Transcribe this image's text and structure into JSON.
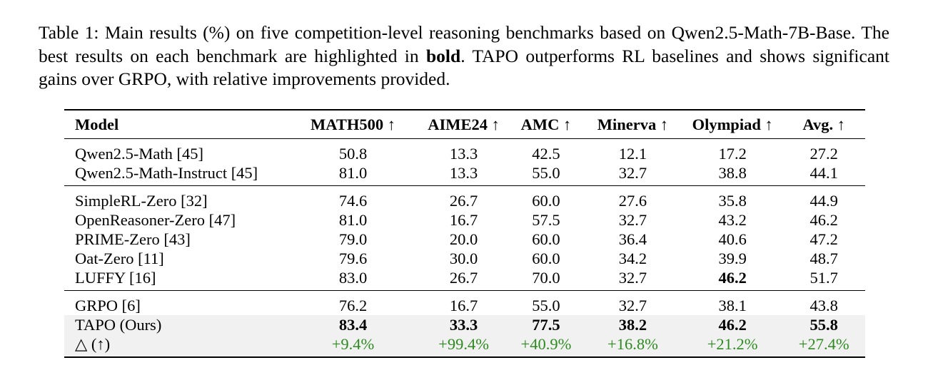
{
  "caption": {
    "prefix": "Table 1: Main results (%) on five competition-level reasoning benchmarks based on Qwen2.5-Math-7B-Base. The best results on each benchmark are highlighted in ",
    "bold_word": "bold",
    "suffix": ". TAPO outperforms RL baselines and shows significant gains over GRPO, with relative improvements provided."
  },
  "table": {
    "headers": [
      "Model",
      "MATH500 ↑",
      "AIME24 ↑",
      "AMC ↑",
      "Minerva ↑",
      "Olympiad ↑",
      "Avg. ↑"
    ],
    "groups": [
      {
        "rows": [
          {
            "model": "Qwen2.5-Math [45]",
            "values": [
              "50.8",
              "13.3",
              "42.5",
              "12.1",
              "17.2",
              "27.2"
            ]
          },
          {
            "model": "Qwen2.5-Math-Instruct [45]",
            "values": [
              "81.0",
              "13.3",
              "55.0",
              "32.7",
              "38.8",
              "44.1"
            ]
          }
        ]
      },
      {
        "rows": [
          {
            "model": "SimpleRL-Zero [32]",
            "values": [
              "74.6",
              "26.7",
              "60.0",
              "27.6",
              "35.8",
              "44.9"
            ]
          },
          {
            "model": "OpenReasoner-Zero [47]",
            "values": [
              "81.0",
              "16.7",
              "57.5",
              "32.7",
              "43.2",
              "46.2"
            ]
          },
          {
            "model": "PRIME-Zero [43]",
            "values": [
              "79.0",
              "20.0",
              "60.0",
              "36.4",
              "40.6",
              "47.2"
            ]
          },
          {
            "model": "Oat-Zero [11]",
            "values": [
              "79.6",
              "30.0",
              "60.0",
              "34.2",
              "39.9",
              "48.7"
            ]
          },
          {
            "model": "LUFFY [16]",
            "values": [
              "83.0",
              "26.7",
              "70.0",
              "32.7",
              "46.2",
              "51.7"
            ]
          }
        ]
      },
      {
        "rows": [
          {
            "model": "GRPO [6]",
            "values": [
              "76.2",
              "16.7",
              "55.0",
              "32.7",
              "38.1",
              "43.8"
            ]
          },
          {
            "model": "TAPO (Ours)",
            "values": [
              "83.4",
              "33.3",
              "77.5",
              "38.2",
              "46.2",
              "55.8"
            ]
          },
          {
            "model": "△ (↑)",
            "values": [
              "+9.4%",
              "+99.4%",
              "+40.9%",
              "+16.8%",
              "+21.2%",
              "+27.4%"
            ]
          }
        ]
      }
    ]
  }
}
